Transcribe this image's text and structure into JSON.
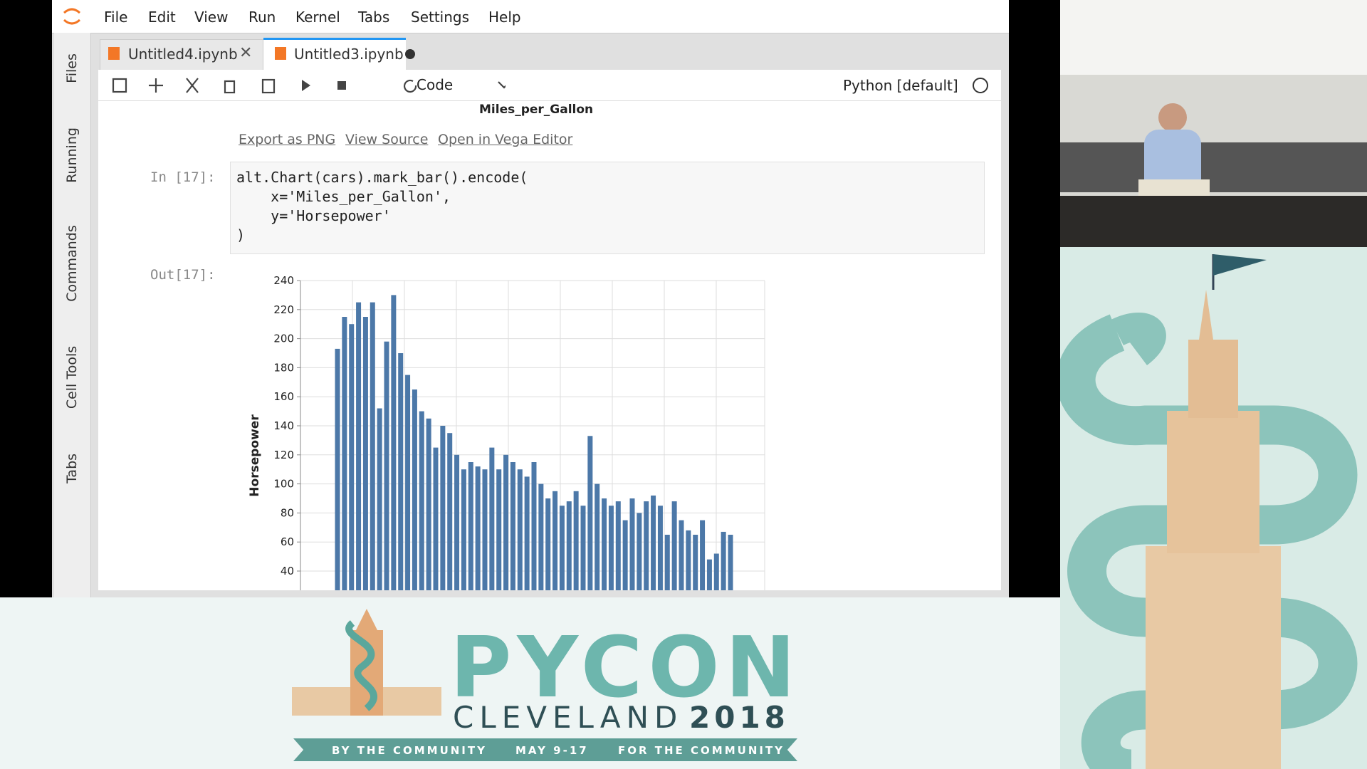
{
  "menu": [
    "File",
    "Edit",
    "View",
    "Run",
    "Kernel",
    "Tabs",
    "Settings",
    "Help"
  ],
  "sidebar": [
    "Files",
    "Running",
    "Commands",
    "Cell Tools",
    "Tabs"
  ],
  "tabs": [
    "Untitled4.ipynb",
    "Untitled3.ipynb"
  ],
  "toolbar": {
    "cell_type": "Code",
    "kernel": "Python [default]"
  },
  "previous_axis_title": "Miles_per_Gallon",
  "actions": [
    "Export as PNG",
    "View Source",
    "Open in Vega Editor"
  ],
  "cell": {
    "in_prompt": "In [17]:",
    "code": [
      "alt.Chart(cars).mark_bar().encode(",
      "    x='Miles_per_Gallon',",
      "    y='Horsepower'",
      ")"
    ],
    "out_prompt": "Out[17]:"
  },
  "chart_data": {
    "type": "bar",
    "y_label": "Horsepower",
    "values": [
      193,
      215,
      210,
      225,
      215,
      225,
      152,
      198,
      230,
      190,
      175,
      165,
      150,
      145,
      125,
      140,
      135,
      120,
      110,
      115,
      112,
      110,
      125,
      110,
      120,
      115,
      110,
      105,
      115,
      100,
      90,
      95,
      85,
      88,
      95,
      85,
      133,
      100,
      90,
      85,
      88,
      75,
      90,
      80,
      88,
      92,
      85,
      65,
      88,
      75,
      68,
      65,
      75,
      48,
      52,
      67,
      65
    ],
    "color": "#4c78a8",
    "ylim": [
      40,
      240
    ],
    "yticks": [
      40,
      60,
      80,
      100,
      120,
      140,
      160,
      180,
      200,
      220,
      240
    ],
    "grid": true
  },
  "banner": {
    "title": "PYCON",
    "city": "CLEVELAND",
    "year": "2018",
    "ribbon": [
      "BY THE COMMUNITY",
      "MAY 9-17",
      "FOR THE COMMUNITY"
    ]
  }
}
